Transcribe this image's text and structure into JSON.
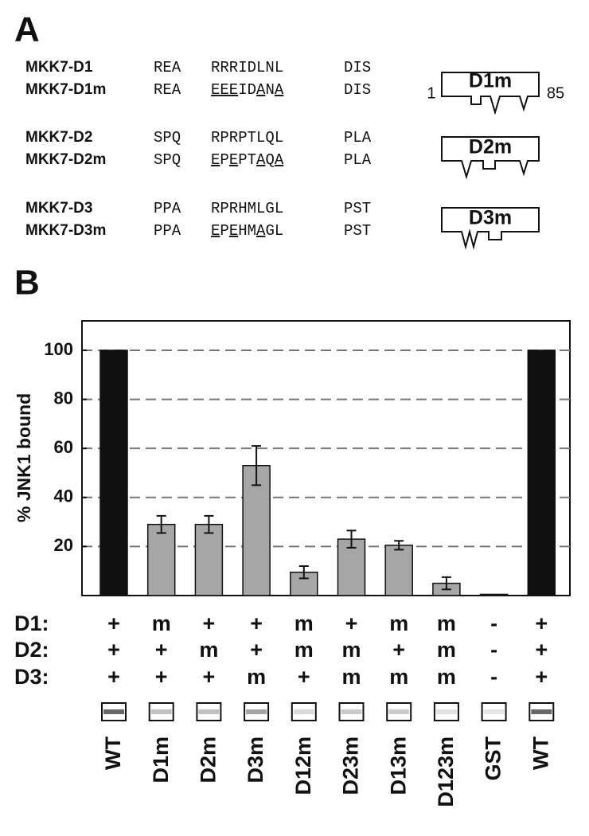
{
  "panel_labels": [
    "A",
    "B"
  ],
  "sequences": [
    {
      "name": "MKK7-D1",
      "prefix": "REA",
      "core": [
        {
          "text": "RRRIDLNL"
        }
      ],
      "suffix": "DIS"
    },
    {
      "name": "MKK7-D1m",
      "prefix": "REA",
      "core": [
        {
          "text": "EEE",
          "underline": true
        },
        {
          "text": "ID"
        },
        {
          "text": "A",
          "underline": true
        },
        {
          "text": "N"
        },
        {
          "text": "A",
          "underline": true
        }
      ],
      "suffix": "DIS"
    },
    {
      "name": "MKK7-D2",
      "prefix": "SPQ",
      "core": [
        {
          "text": "RPRPTLQL"
        }
      ],
      "suffix": "PLA"
    },
    {
      "name": "MKK7-D2m",
      "prefix": "SPQ",
      "core": [
        {
          "text": "E",
          "underline": true
        },
        {
          "text": "P"
        },
        {
          "text": "E",
          "underline": true
        },
        {
          "text": "PT"
        },
        {
          "text": "A",
          "underline": true
        },
        {
          "text": "Q"
        },
        {
          "text": "A",
          "underline": true
        }
      ],
      "suffix": "PLA"
    },
    {
      "name": "MKK7-D3",
      "prefix": "PPA",
      "core": [
        {
          "text": "RPRHMLGL"
        }
      ],
      "suffix": "PST"
    },
    {
      "name": "MKK7-D3m",
      "prefix": "PPA",
      "core": [
        {
          "text": "E",
          "underline": true
        },
        {
          "text": "P"
        },
        {
          "text": "E",
          "underline": true
        },
        {
          "text": "HM"
        },
        {
          "text": "A",
          "underline": true
        },
        {
          "text": "GL"
        }
      ],
      "suffix": "PST"
    }
  ],
  "diagrams": {
    "labels": [
      "D1m",
      "D2m",
      "D3m"
    ],
    "start": "1",
    "end": "85"
  },
  "chart_data": {
    "type": "bar",
    "y_label": "% JNK1 bound",
    "categories": [
      "WT",
      "D1m",
      "D2m",
      "D3m",
      "D12m",
      "D23m",
      "D13m",
      "D123m",
      "GST",
      "WT"
    ],
    "values": [
      100,
      29,
      29,
      53,
      9.5,
      23,
      20.5,
      5,
      0.5,
      100
    ],
    "errors": [
      null,
      3.5,
      3.5,
      8,
      2.5,
      3.5,
      1.8,
      2.5,
      null,
      null
    ],
    "colors": [
      "#111111",
      "#a6a6a6",
      "#a6a6a6",
      "#a6a6a6",
      "#a6a6a6",
      "#a6a6a6",
      "#a6a6a6",
      "#a6a6a6",
      "#a6a6a6",
      "#111111"
    ],
    "ylim": [
      0,
      112
    ],
    "yticks": [
      20,
      40,
      60,
      80,
      100
    ],
    "grid": true,
    "genotype": [
      {
        "label": "D1:",
        "values": [
          "+",
          "m",
          "+",
          "+",
          "m",
          "+",
          "m",
          "m",
          "-",
          "+"
        ]
      },
      {
        "label": "D2:",
        "values": [
          "+",
          "+",
          "m",
          "+",
          "m",
          "m",
          "+",
          "m",
          "-",
          "+"
        ]
      },
      {
        "label": "D3:",
        "values": [
          "+",
          "+",
          "+",
          "m",
          "+",
          "m",
          "m",
          "m",
          "-",
          "+"
        ]
      }
    ]
  }
}
